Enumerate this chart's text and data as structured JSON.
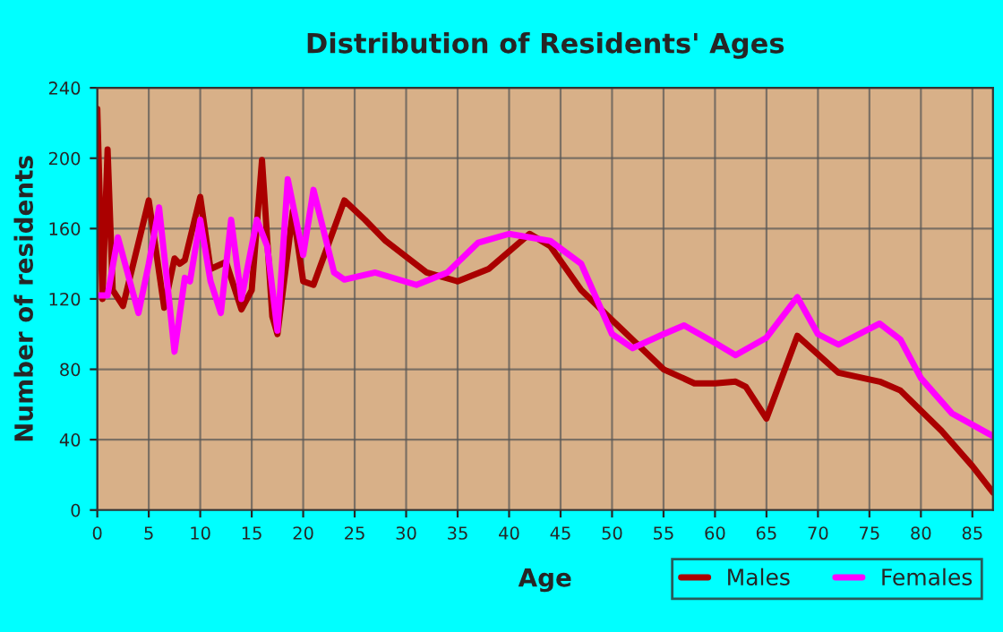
{
  "chart_data": {
    "type": "line",
    "title": "Distribution of Residents' Ages",
    "xlabel": "Age",
    "ylabel": "Number of residents",
    "xlim": [
      0,
      87
    ],
    "xticks": [
      0,
      5,
      10,
      15,
      20,
      25,
      30,
      35,
      40,
      45,
      50,
      55,
      60,
      65,
      70,
      75,
      80,
      85
    ],
    "ylim": [
      0,
      240
    ],
    "yticks": [
      0,
      40,
      80,
      120,
      160,
      200,
      240
    ],
    "grid": true,
    "legend": "bottom right",
    "marker": "none",
    "line_style": "solid",
    "series": [
      {
        "name": "Males",
        "color": "#aa0000",
        "x": [
          0,
          0.5,
          1,
          1.5,
          2.5,
          5,
          6.5,
          7.5,
          8,
          8.5,
          10,
          11,
          12.5,
          14,
          15,
          16,
          17,
          17.5,
          19,
          20,
          21,
          24,
          26,
          28,
          32,
          35,
          38,
          42,
          44,
          47,
          50,
          55,
          58,
          60,
          62,
          63,
          65,
          68,
          72,
          76,
          78,
          82,
          85,
          87
        ],
        "values": [
          228,
          120,
          205,
          125,
          116,
          176,
          115,
          143,
          140,
          142,
          178,
          137,
          141,
          114,
          125,
          199,
          110,
          100,
          170,
          130,
          128,
          176,
          165,
          153,
          135,
          130,
          137,
          157,
          150,
          125,
          108,
          80,
          72,
          72,
          73,
          70,
          52,
          99,
          78,
          73,
          68,
          45,
          25,
          10
        ]
      },
      {
        "name": "Females",
        "color": "#ff00ff",
        "x": [
          0,
          1,
          2,
          4,
          5,
          6,
          7,
          7.5,
          8.5,
          9,
          10,
          11,
          12,
          13,
          14,
          15.5,
          16.5,
          17.5,
          18.5,
          20,
          21,
          23,
          24,
          27,
          31,
          34,
          37,
          40,
          44,
          47,
          50,
          52,
          55,
          57,
          60,
          62,
          65,
          68,
          70,
          72,
          76,
          78,
          80,
          83,
          87
        ],
        "values": [
          122,
          122,
          155,
          112,
          140,
          172,
          118,
          90,
          132,
          130,
          165,
          130,
          112,
          165,
          120,
          165,
          150,
          102,
          188,
          145,
          182,
          135,
          131,
          135,
          128,
          135,
          152,
          157,
          153,
          140,
          100,
          92,
          100,
          105,
          95,
          88,
          98,
          121,
          100,
          94,
          106,
          97,
          75,
          55,
          42
        ]
      }
    ]
  }
}
